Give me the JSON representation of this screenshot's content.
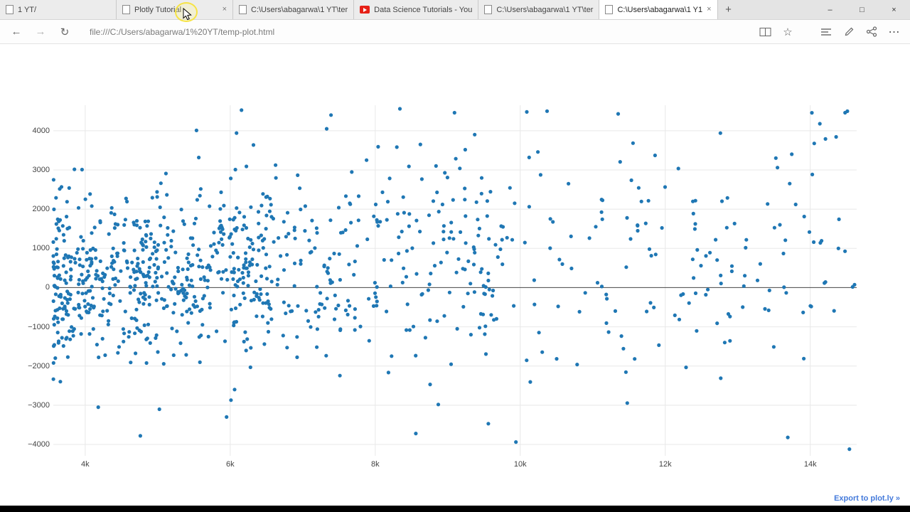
{
  "browser": {
    "tabs": [
      {
        "label": "1 YT/",
        "icon": "page",
        "active": false,
        "closable": false
      },
      {
        "label": "Plotly Tutorial",
        "icon": "page",
        "active": false,
        "closable": true
      },
      {
        "label": "C:\\Users\\abagarwa\\1 YT\\ter",
        "icon": "page",
        "active": false,
        "closable": false
      },
      {
        "label": "Data Science Tutorials - You",
        "icon": "youtube",
        "active": false,
        "closable": false
      },
      {
        "label": "C:\\Users\\abagarwa\\1 YT\\ter",
        "icon": "page",
        "active": false,
        "closable": false
      },
      {
        "label": "C:\\Users\\abagarwa\\1 Y1",
        "icon": "page",
        "active": true,
        "closable": true
      }
    ],
    "address": "file:///C:/Users/abagarwa/1%20YT/temp-plot.html",
    "icons": {
      "back": "←",
      "forward": "→",
      "refresh": "↻",
      "star": "☆",
      "more": "⋯",
      "new_tab": "+",
      "close_tab": "×",
      "minimize": "–",
      "maximize": "□",
      "close": "×"
    }
  },
  "page": {
    "export_link": "Export to plot.ly »"
  },
  "chart_data": {
    "type": "scatter",
    "title": "",
    "xlabel": "",
    "ylabel": "",
    "grid": true,
    "legend": "none",
    "background": "#ffffff",
    "grid_color": "#e8e8e8",
    "marker_color": "#1f77b4",
    "marker_radius_px": 2.6,
    "xlim": [
      3560,
      14640
    ],
    "ylim": [
      -4290,
      4650
    ],
    "x_tick_values": [
      4000,
      6000,
      8000,
      10000,
      12000,
      14000
    ],
    "x_tick_labels": [
      "4k",
      "6k",
      "8k",
      "10k",
      "12k",
      "14k"
    ],
    "y_tick_values": [
      -4000,
      -3000,
      -2000,
      -1000,
      0,
      1000,
      2000,
      3000,
      4000
    ],
    "y_tick_labels": [
      "−4000",
      "−3000",
      "−2000",
      "−1000",
      "0",
      "1000",
      "2000",
      "3000",
      "4000"
    ],
    "zeroline": {
      "y": 0,
      "color": "#444444",
      "width": 1
    },
    "points_note": "~1000 unlabeled random-looking points; dense cloud between x=3.6k-6.5k spanning y=-2200..2500, moderate density x=6.5k-9.5k reaching y=4000, sparse scatter x=9.5k-14.6k spanning y=-2000..4600, plus isolated extremes near y=-3000..-4100 and y=4400..4600",
    "generator": {
      "seed": 7,
      "clusters": [
        {
          "n": 560,
          "x_min": 3560,
          "x_max": 6600,
          "x_bias": 1.5,
          "y_mean": 300,
          "y_sd": 1050
        },
        {
          "n": 280,
          "x_min": 6000,
          "x_max": 9800,
          "x_bias": 1.0,
          "y_mean": 800,
          "y_sd": 1300
        },
        {
          "n": 170,
          "x_min": 9200,
          "x_max": 14640,
          "x_bias": 1.0,
          "y_mean": 800,
          "y_sd": 1700
        }
      ],
      "outliers": [
        [
          4180,
          -3050
        ],
        [
          4760,
          -3780
        ],
        [
          5950,
          -3300
        ],
        [
          6010,
          -2870
        ],
        [
          6060,
          -2600
        ],
        [
          8560,
          -3720
        ],
        [
          8870,
          -2980
        ],
        [
          9560,
          -3470
        ],
        [
          13690,
          -3820
        ],
        [
          14540,
          -4120
        ],
        [
          7330,
          4050
        ],
        [
          7390,
          4400
        ],
        [
          8340,
          4560
        ],
        [
          10090,
          4480
        ],
        [
          10370,
          4500
        ],
        [
          11350,
          4430
        ],
        [
          12760,
          3940
        ],
        [
          14210,
          3790
        ],
        [
          14480,
          4460
        ]
      ]
    }
  }
}
